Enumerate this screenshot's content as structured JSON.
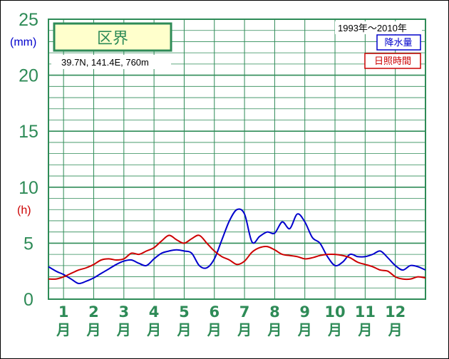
{
  "chart_data": {
    "type": "line",
    "title": "区界",
    "location": "39.7N,  141.4E,  760m",
    "period": "1993年〜2010年",
    "y_unit_primary": "(mm)",
    "y_unit_secondary": "(h)",
    "ylim": [
      0,
      25
    ],
    "yticks": [
      "0",
      "5",
      "10",
      "15",
      "20",
      "25"
    ],
    "months": [
      "1",
      "2",
      "3",
      "4",
      "5",
      "6",
      "7",
      "8",
      "9",
      "10",
      "11",
      "12"
    ],
    "month_suffix": "月",
    "grid": true,
    "legend_position": "top-right",
    "x_range": [
      0.5,
      13.0
    ],
    "series": [
      {
        "name": "降水量",
        "color": "#0000cc",
        "x": [
          0.5,
          0.75,
          1.0,
          1.25,
          1.5,
          1.75,
          2.0,
          2.25,
          2.5,
          2.75,
          3.0,
          3.25,
          3.5,
          3.75,
          4.0,
          4.25,
          4.5,
          4.75,
          5.0,
          5.25,
          5.5,
          5.75,
          6.0,
          6.25,
          6.5,
          6.75,
          7.0,
          7.25,
          7.5,
          7.75,
          8.0,
          8.25,
          8.5,
          8.75,
          9.0,
          9.25,
          9.5,
          9.75,
          10.0,
          10.25,
          10.5,
          10.75,
          11.0,
          11.25,
          11.5,
          11.75,
          12.0,
          12.25,
          12.5,
          12.75,
          13.0
        ],
        "values": [
          2.9,
          2.5,
          2.2,
          1.8,
          1.4,
          1.6,
          1.9,
          2.3,
          2.7,
          3.1,
          3.4,
          3.5,
          3.2,
          3.0,
          3.6,
          4.1,
          4.3,
          4.4,
          4.3,
          4.1,
          3.0,
          2.8,
          3.6,
          5.3,
          7.0,
          8.0,
          7.6,
          5.1,
          5.6,
          6.0,
          5.9,
          6.9,
          6.3,
          7.6,
          6.9,
          5.5,
          5.0,
          3.8,
          3.0,
          3.3,
          4.0,
          3.8,
          3.8,
          4.0,
          4.3,
          3.7,
          3.0,
          2.6,
          3.0,
          2.9,
          2.6
        ]
      },
      {
        "name": "日照時間",
        "color": "#cc0000",
        "x": [
          0.5,
          0.75,
          1.0,
          1.25,
          1.5,
          1.75,
          2.0,
          2.25,
          2.5,
          2.75,
          3.0,
          3.25,
          3.5,
          3.75,
          4.0,
          4.25,
          4.5,
          4.75,
          5.0,
          5.25,
          5.5,
          5.75,
          6.0,
          6.25,
          6.5,
          6.75,
          7.0,
          7.25,
          7.5,
          7.75,
          8.0,
          8.25,
          8.5,
          8.75,
          9.0,
          9.25,
          9.5,
          9.75,
          10.0,
          10.25,
          10.5,
          10.75,
          11.0,
          11.25,
          11.5,
          11.75,
          12.0,
          12.25,
          12.5,
          12.75,
          13.0
        ],
        "values": [
          1.8,
          1.8,
          2.0,
          2.3,
          2.6,
          2.8,
          3.1,
          3.5,
          3.6,
          3.5,
          3.6,
          4.1,
          4.0,
          4.3,
          4.6,
          5.2,
          5.7,
          5.3,
          5.0,
          5.4,
          5.7,
          5.0,
          4.3,
          3.8,
          3.5,
          3.1,
          3.4,
          4.2,
          4.6,
          4.7,
          4.4,
          4.0,
          3.9,
          3.8,
          3.6,
          3.7,
          3.9,
          4.0,
          4.0,
          3.9,
          3.7,
          3.3,
          3.1,
          2.9,
          2.6,
          2.5,
          2.0,
          1.8,
          1.8,
          2.0,
          1.9
        ]
      }
    ]
  }
}
